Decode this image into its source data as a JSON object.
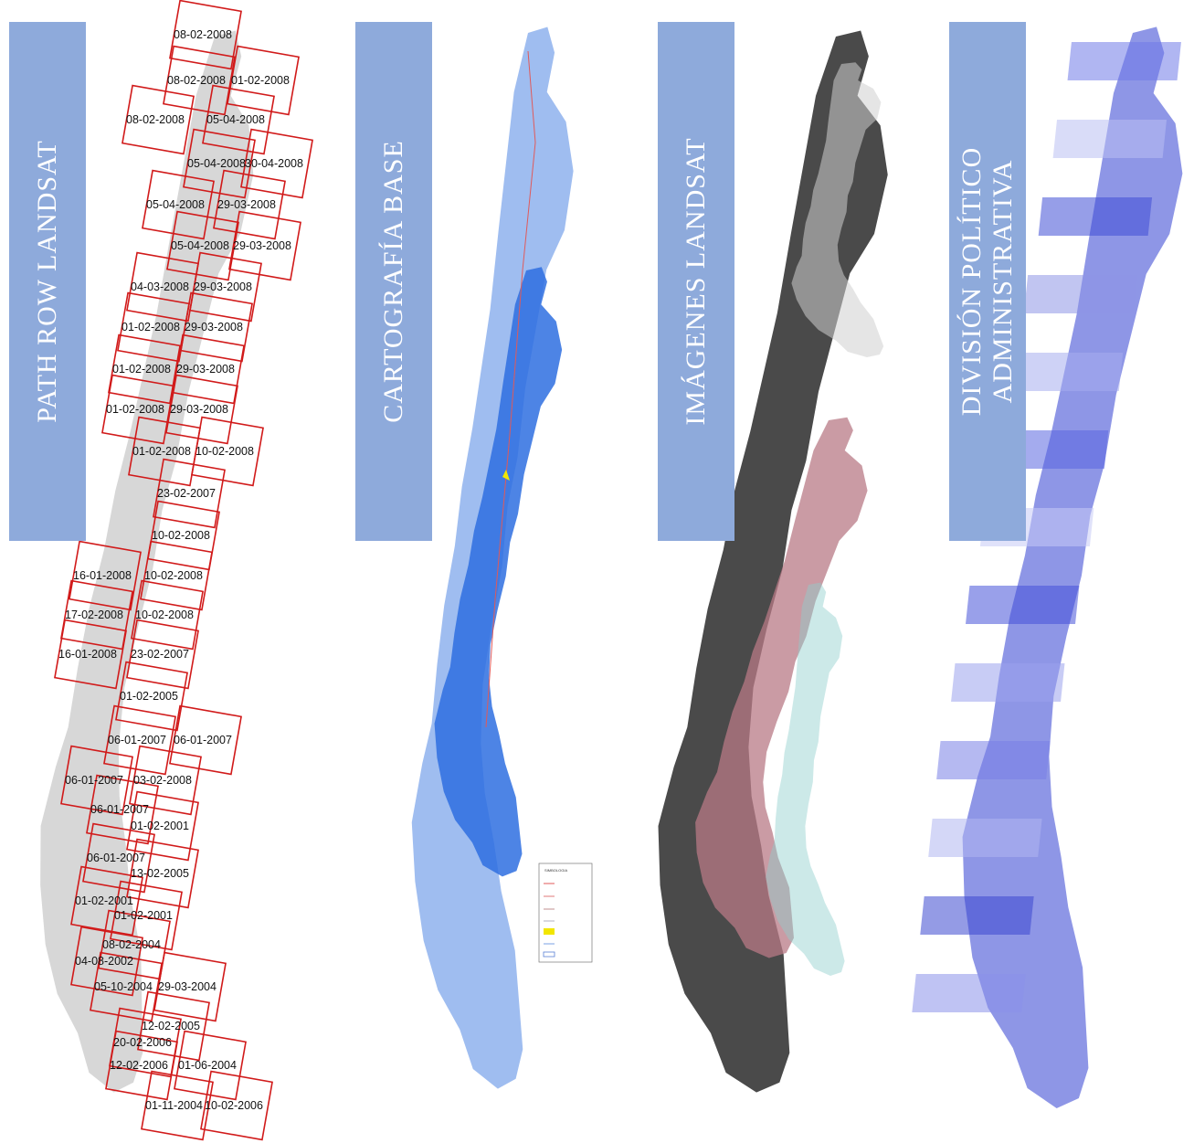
{
  "panels": {
    "path_row": {
      "title": "PATH ROW LANDSAT"
    },
    "cartografia": {
      "title": "CARTOGRAFÍA BASE"
    },
    "imagenes": {
      "title": "IMÁGENES LANDSAT"
    },
    "division": {
      "title_line1": "DIVISIÓN POLÍTICO",
      "title_line2": "ADMINISTRATIVA"
    }
  },
  "scene_dates": [
    "08-02-2008",
    "08-02-2008",
    "01-02-2008",
    "08-02-2008",
    "05-04-2008",
    "05-04-2008",
    "30-04-2008",
    "05-04-2008",
    "29-03-2008",
    "05-04-2008",
    "29-03-2008",
    "04-03-2008",
    "29-03-2008",
    "01-02-2008",
    "29-03-2008",
    "01-02-2008",
    "29-03-2008",
    "01-02-2008",
    "29-03-2008",
    "01-02-2008",
    "10-02-2008",
    "23-02-2007",
    "10-02-2008",
    "16-01-2008",
    "10-02-2008",
    "17-02-2008",
    "10-02-2008",
    "16-01-2008",
    "23-02-2007",
    "01-02-2005",
    "06-01-2007",
    "06-01-2007",
    "06-01-2007",
    "03-02-2008",
    "06-01-2007",
    "01-02-2001",
    "06-01-2007",
    "13-02-2005",
    "01-02-2001",
    "01-02-2001",
    "08-02-2004",
    "04-08-2002",
    "05-10-2004",
    "29-03-2004",
    "12-02-2005",
    "20-02-2006",
    "12-02-2006",
    "01-06-2004",
    "01-11-2004",
    "10-02-2006"
  ],
  "legend": {
    "title": "SIMBOLOGIA",
    "colors": {
      "road": "#e05a5a",
      "water": "#1f5fd6",
      "lake": "#f2e600",
      "boundary": "#5a7fd6"
    }
  },
  "colors": {
    "banner": "#8eaadb",
    "banner_text": "#ffffff",
    "footprint": "#d11a1a",
    "land_gray": "#d4d4d4",
    "carto_blue": "#2e6fe0",
    "carto_light": "#a9c4f2",
    "landsat_dark": "#3a3a3a",
    "landsat_pink": "#b87a86",
    "landsat_cyan": "#8fcfcc",
    "region_dark": "#3f4fd6",
    "region_light": "#b9bff2"
  }
}
